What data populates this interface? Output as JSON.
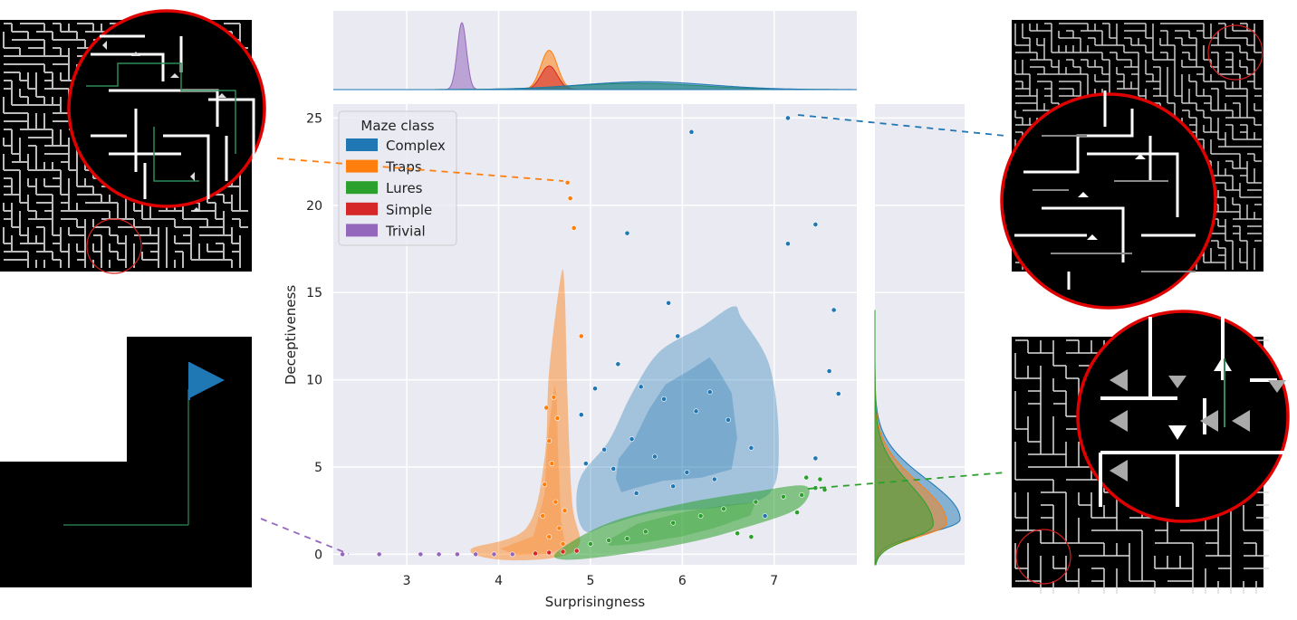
{
  "chart_data": {
    "type": "scatter",
    "xlabel": "Surprisingness",
    "ylabel": "Deceptiveness",
    "xlim": [
      2.2,
      7.9
    ],
    "ylim": [
      -0.6,
      25.8
    ],
    "x_ticks": [
      3,
      4,
      5,
      6,
      7
    ],
    "y_ticks": [
      0,
      5,
      10,
      15,
      20,
      25
    ],
    "grid": true,
    "legend": {
      "title": "Maze class",
      "placement": "top-left",
      "entries": [
        {
          "name": "Complex",
          "color": "#1f77b4"
        },
        {
          "name": "Traps",
          "color": "#ff7f0e"
        },
        {
          "name": "Lures",
          "color": "#2ca02c"
        },
        {
          "name": "Simple",
          "color": "#d62728"
        },
        {
          "name": "Trivial",
          "color": "#9467bd"
        }
      ]
    },
    "series": [
      {
        "name": "Complex",
        "color": "#1f77b4",
        "points": [
          [
            7.15,
            25.0
          ],
          [
            6.1,
            24.2
          ],
          [
            5.4,
            18.4
          ],
          [
            7.45,
            18.9
          ],
          [
            7.15,
            17.8
          ],
          [
            5.85,
            14.4
          ],
          [
            7.65,
            14.0
          ],
          [
            7.6,
            10.5
          ],
          [
            7.7,
            9.2
          ],
          [
            5.95,
            12.5
          ],
          [
            5.3,
            10.9
          ],
          [
            5.8,
            8.9
          ],
          [
            5.55,
            9.6
          ],
          [
            6.3,
            9.3
          ],
          [
            5.05,
            9.5
          ],
          [
            4.9,
            8.0
          ],
          [
            7.45,
            5.5
          ],
          [
            5.15,
            6.0
          ],
          [
            5.45,
            6.6
          ],
          [
            5.7,
            5.6
          ],
          [
            6.05,
            4.7
          ],
          [
            5.25,
            4.9
          ],
          [
            5.9,
            3.9
          ],
          [
            6.35,
            4.3
          ],
          [
            5.5,
            3.5
          ],
          [
            6.5,
            7.7
          ],
          [
            6.75,
            6.1
          ],
          [
            4.95,
            5.2
          ],
          [
            6.9,
            2.2
          ],
          [
            6.15,
            8.2
          ]
        ]
      },
      {
        "name": "Traps",
        "color": "#ff7f0e",
        "points": [
          [
            4.75,
            21.3
          ],
          [
            4.78,
            20.4
          ],
          [
            4.82,
            18.7
          ],
          [
            4.9,
            12.5
          ],
          [
            4.6,
            9.0
          ],
          [
            4.55,
            6.5
          ],
          [
            4.5,
            4.0
          ],
          [
            4.62,
            3.0
          ],
          [
            4.48,
            2.2
          ],
          [
            4.66,
            1.5
          ],
          [
            4.55,
            1.0
          ],
          [
            4.7,
            0.6
          ],
          [
            4.58,
            5.2
          ],
          [
            4.64,
            7.8
          ],
          [
            4.52,
            8.4
          ],
          [
            4.72,
            2.5
          ]
        ]
      },
      {
        "name": "Lures",
        "color": "#2ca02c",
        "points": [
          [
            7.35,
            4.4
          ],
          [
            7.45,
            3.8
          ],
          [
            7.5,
            4.3
          ],
          [
            7.55,
            3.7
          ],
          [
            7.3,
            3.4
          ],
          [
            7.25,
            2.4
          ],
          [
            6.6,
            1.2
          ],
          [
            6.75,
            1.0
          ],
          [
            5.2,
            0.8
          ],
          [
            5.6,
            1.3
          ],
          [
            5.9,
            1.8
          ],
          [
            6.2,
            2.2
          ],
          [
            6.45,
            2.6
          ],
          [
            6.8,
            3.0
          ],
          [
            7.1,
            3.3
          ],
          [
            5.0,
            0.6
          ],
          [
            5.4,
            0.9
          ]
        ]
      },
      {
        "name": "Simple",
        "color": "#d62728",
        "points": [
          [
            4.55,
            0.1
          ],
          [
            4.7,
            0.15
          ],
          [
            4.4,
            0.05
          ],
          [
            4.85,
            0.2
          ]
        ]
      },
      {
        "name": "Trivial",
        "color": "#9467bd",
        "points": [
          [
            2.3,
            0.0
          ],
          [
            2.7,
            0.0
          ],
          [
            3.15,
            0.0
          ],
          [
            3.35,
            0.0
          ],
          [
            3.55,
            0.0
          ],
          [
            3.75,
            0.0
          ],
          [
            3.95,
            0.0
          ],
          [
            4.15,
            0.0
          ]
        ]
      }
    ],
    "density_regions": [
      {
        "name": "Complex",
        "color": "#1f77b4",
        "contour": [
          [
            4.9,
            4.5
          ],
          [
            5.2,
            6.5
          ],
          [
            5.45,
            9.2
          ],
          [
            5.75,
            11.6
          ],
          [
            6.2,
            13.0
          ],
          [
            6.55,
            14.2
          ],
          [
            6.65,
            13.5
          ],
          [
            6.95,
            10.8
          ],
          [
            7.05,
            6.5
          ],
          [
            6.95,
            3.5
          ],
          [
            6.4,
            2.7
          ],
          [
            5.7,
            2.4
          ],
          [
            5.2,
            1.7
          ],
          [
            4.95,
            1.3
          ],
          [
            4.85,
            2.6
          ]
        ]
      },
      {
        "name": "Traps",
        "color": "#ff7f0e",
        "contour": [
          [
            3.7,
            0.3
          ],
          [
            4.3,
            1.5
          ],
          [
            4.5,
            5.5
          ],
          [
            4.55,
            10.5
          ],
          [
            4.68,
            16.0
          ],
          [
            4.72,
            15.0
          ],
          [
            4.75,
            9.0
          ],
          [
            4.8,
            3.0
          ],
          [
            4.88,
            0.6
          ],
          [
            4.6,
            -0.2
          ],
          [
            4.0,
            -0.3
          ]
        ]
      },
      {
        "name": "Lures",
        "color": "#2ca02c",
        "contour": [
          [
            4.65,
            0.2
          ],
          [
            5.2,
            1.8
          ],
          [
            6.0,
            2.9
          ],
          [
            6.8,
            3.6
          ],
          [
            7.35,
            3.9
          ],
          [
            7.25,
            2.6
          ],
          [
            6.6,
            1.4
          ],
          [
            6.0,
            0.6
          ],
          [
            5.2,
            -0.1
          ],
          [
            4.7,
            -0.3
          ]
        ]
      }
    ],
    "marginal_x": {
      "placement": "top",
      "peaks": [
        {
          "name": "Trivial",
          "color": "#9467bd",
          "center": 3.6,
          "height": 0.85
        },
        {
          "name": "Traps",
          "color": "#ff7f0e",
          "center": 4.55,
          "height": 0.5
        },
        {
          "name": "Simple",
          "color": "#d62728",
          "center": 4.55,
          "height": 0.3
        },
        {
          "name": "Lures",
          "color": "#2ca02c",
          "center": 5.5,
          "height": 0.08
        },
        {
          "name": "Complex",
          "color": "#1f77b4",
          "center": 5.6,
          "height": 0.1
        }
      ]
    },
    "marginal_y": {
      "placement": "right",
      "peaks": [
        {
          "name": "Complex",
          "color": "#1f77b4",
          "center": 2.0,
          "height": 0.95
        },
        {
          "name": "Traps",
          "color": "#ff7f0e",
          "center": 1.8,
          "height": 0.8
        },
        {
          "name": "Lures",
          "color": "#2ca02c",
          "center": 1.7,
          "height": 0.65
        }
      ]
    }
  },
  "insets": [
    {
      "name": "trap-maze-inset",
      "connects_to": "Traps",
      "color": "#ff7f0e"
    },
    {
      "name": "trivial-maze-inset",
      "connects_to": "Trivial",
      "color": "#9467bd"
    },
    {
      "name": "complex-maze-inset",
      "connects_to": "Complex",
      "color": "#1f77b4"
    },
    {
      "name": "lure-maze-inset",
      "connects_to": "Lures",
      "color": "#2ca02c"
    }
  ]
}
